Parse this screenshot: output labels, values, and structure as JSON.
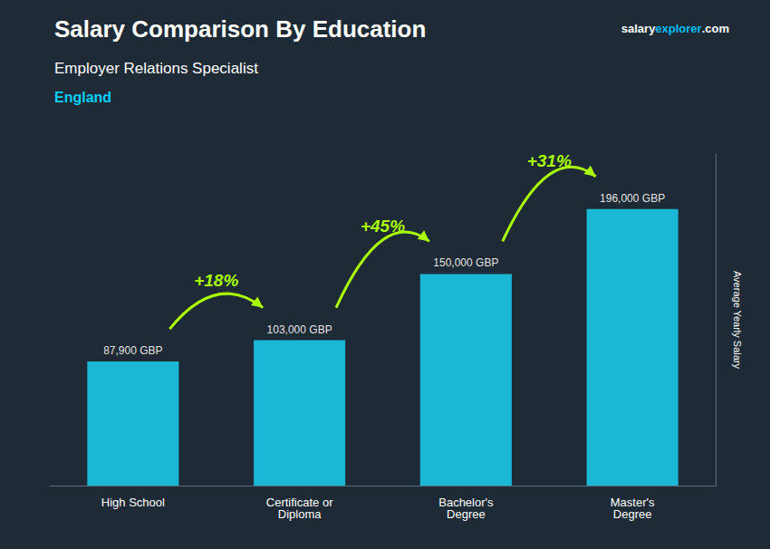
{
  "chart_data": {
    "type": "bar",
    "title": "Salary Comparison By Education",
    "subtitle": "Employer Relations Specialist",
    "location": "England",
    "watermark": [
      "salary",
      "explorer",
      ".com"
    ],
    "ylabel": "Average Yearly Salary",
    "categories": [
      "High School",
      "Certificate or\nDiploma",
      "Bachelor's\nDegree",
      "Master's\nDegree"
    ],
    "values": [
      87900,
      103000,
      150000,
      196000
    ],
    "value_labels": [
      "87,900 GBP",
      "103,000 GBP",
      "150,000 GBP",
      "196,000 GBP"
    ],
    "data_labels": true,
    "color": "#1bc8e8",
    "ylim": [
      0,
      235000
    ],
    "yticks": [],
    "tick_labels": "x",
    "grid": false,
    "annotations": [
      {
        "text": "+18%",
        "from": "High School",
        "to": "Certificate or\nDiploma"
      },
      {
        "text": "+45%",
        "from": "Certificate or\nDiploma",
        "to": "Bachelor's\nDegree"
      },
      {
        "text": "+31%",
        "from": "Bachelor's\nDegree",
        "to": "Master's\nDegree"
      }
    ]
  }
}
